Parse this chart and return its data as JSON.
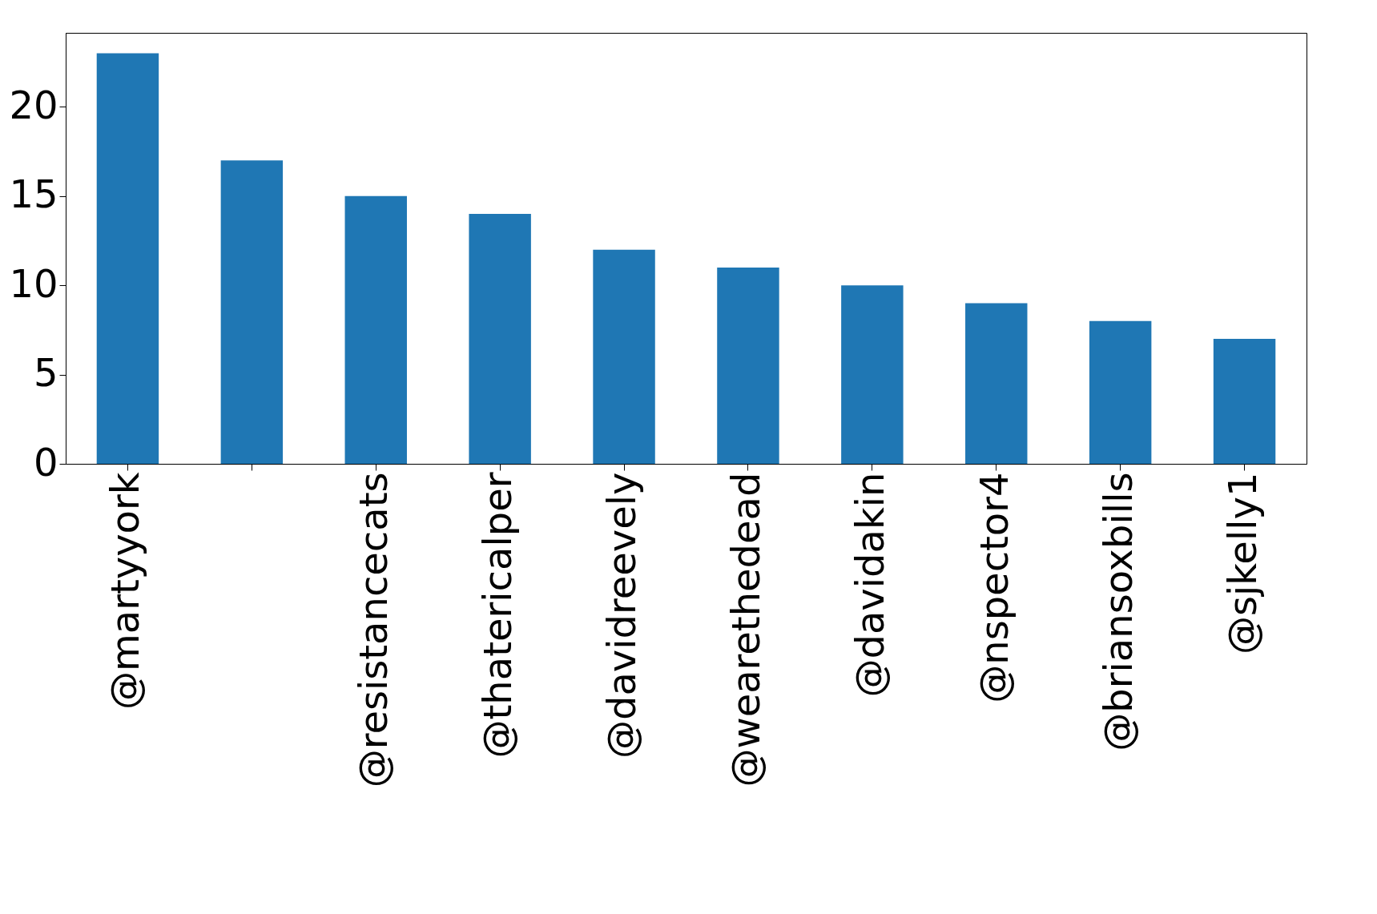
{
  "chart_data": {
    "type": "bar",
    "categories": [
      "@martyyork",
      null,
      "@resistancecats",
      "@thatericalper",
      "@davidreevely",
      "@wearethedead",
      "@davidakin",
      "@nspector4",
      "@briansoxbills",
      "@sjkelly1"
    ],
    "values": [
      23,
      17,
      15,
      14,
      12,
      11,
      10,
      9,
      8,
      7
    ],
    "color": "#1f77b4",
    "ylim": [
      0,
      24.15
    ],
    "yticks": [
      0,
      5,
      10,
      15,
      20
    ],
    "grid": false
  }
}
